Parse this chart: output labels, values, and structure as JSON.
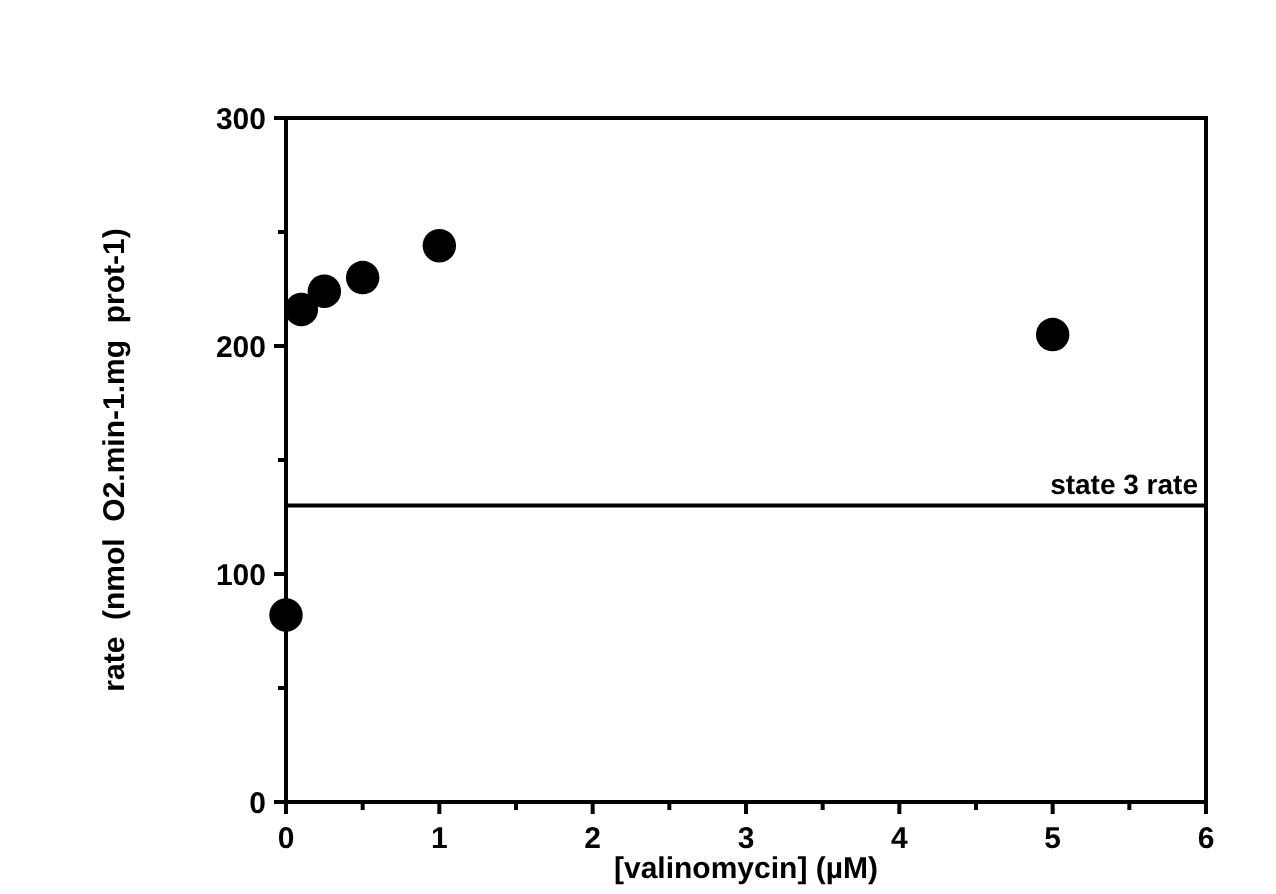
{
  "chart_data": {
    "type": "scatter",
    "xlabel": "[valinomycin]  (µM)",
    "ylabel": "rate  (nmol  O2.min-1.mg  prot-1)",
    "x": [
      0,
      0.1,
      0.25,
      0.5,
      1,
      5
    ],
    "series": [
      {
        "color": "#000000",
        "values": [
          82,
          216,
          224,
          230,
          244,
          205
        ]
      }
    ],
    "xlim": [
      0,
      6
    ],
    "ylim": [
      0,
      300
    ],
    "xticks": [
      0,
      {
        "value": 0.5,
        "label": null
      },
      1,
      {
        "value": 1.5,
        "label": null
      },
      2,
      {
        "value": 2.5,
        "label": null
      },
      3,
      {
        "value": 3.5,
        "label": null
      },
      4,
      {
        "value": 4.5,
        "label": null
      },
      5,
      {
        "value": 5.5,
        "label": null
      },
      6
    ],
    "yticks": [
      0,
      {
        "value": 50,
        "label": null
      },
      100,
      {
        "value": 150,
        "label": null
      },
      200,
      {
        "value": 250,
        "label": null
      },
      300
    ],
    "ref_lines": [
      {
        "axis": "y",
        "value": 130,
        "label": "state 3 rate",
        "color": "#000000",
        "line_style": "solid"
      }
    ],
    "marker": "circle",
    "grid": false
  }
}
